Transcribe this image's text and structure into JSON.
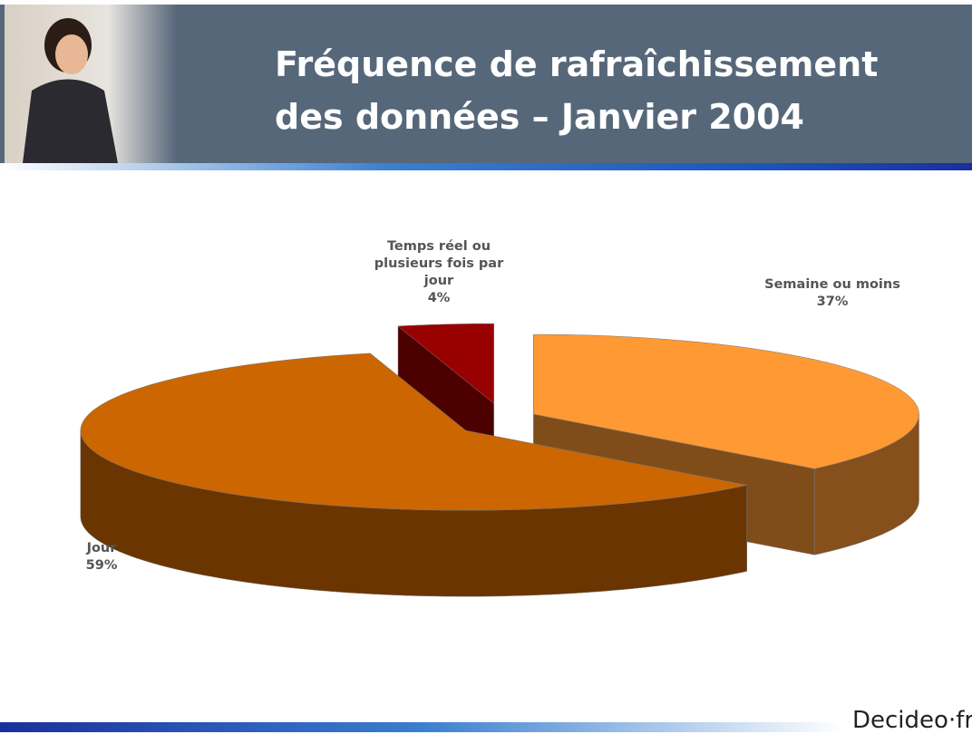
{
  "chart_data": {
    "type": "pie",
    "title": "Fréquence de rafraîchissement des données – Janvier 2004",
    "categories": [
      "Semaine ou moins",
      "Jour",
      "Temps réel ou plusieurs fois par jour"
    ],
    "values": [
      37,
      59,
      4
    ],
    "value_labels": [
      "37%",
      "59%",
      "4%"
    ],
    "colors": [
      "#ff9933",
      "#cc6600",
      "#990000"
    ]
  },
  "footer_logo": "Decideo·fr"
}
